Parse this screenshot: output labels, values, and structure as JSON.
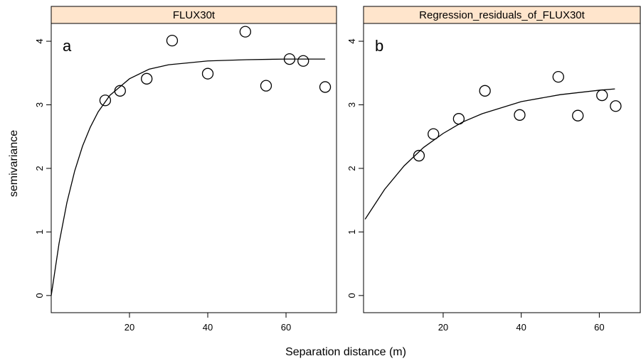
{
  "ylabel": "semivariance",
  "xlabel": "Separation distance (m)",
  "chart_data": [
    {
      "type": "scatter",
      "title": "FLUX30t",
      "annotation": "a",
      "x": [
        13.8,
        17.6,
        24.4,
        30.9,
        40.0,
        49.6,
        54.9,
        60.9,
        64.4,
        70.0
      ],
      "values": [
        3.07,
        3.22,
        3.41,
        4.01,
        3.49,
        4.15,
        3.3,
        3.72,
        3.69,
        3.28
      ],
      "fit": {
        "x": [
          0,
          2,
          4,
          6,
          8,
          10,
          12,
          15,
          20,
          25,
          30,
          40,
          50,
          60,
          70
        ],
        "values": [
          0,
          0.82,
          1.46,
          1.96,
          2.35,
          2.65,
          2.89,
          3.15,
          3.41,
          3.56,
          3.63,
          3.69,
          3.71,
          3.72,
          3.72
        ]
      },
      "xlim": [
        0,
        72.9
      ],
      "ylim": [
        -0.27,
        4.28
      ],
      "xticks": [
        20,
        40,
        60
      ],
      "yticks": [
        0,
        1,
        2,
        3,
        4
      ],
      "color": "#000000"
    },
    {
      "type": "scatter",
      "title": "Regression_residuals_of_FLUX30t",
      "annotation": "b",
      "x": [
        13.8,
        17.5,
        24.0,
        30.7,
        39.6,
        49.5,
        54.5,
        60.7,
        64.2
      ],
      "values": [
        2.2,
        2.54,
        2.78,
        3.22,
        2.84,
        3.44,
        2.83,
        3.15,
        2.98
      ],
      "fit": {
        "x": [
          0,
          5,
          10,
          15,
          20,
          25,
          30,
          40,
          50,
          60,
          64
        ],
        "values": [
          1.2,
          1.67,
          2.04,
          2.33,
          2.55,
          2.73,
          2.86,
          3.05,
          3.16,
          3.23,
          3.25
        ]
      },
      "xlim": [
        -0.4,
        70.5
      ],
      "ylim": [
        -0.27,
        4.28
      ],
      "xticks": [
        20,
        40,
        60
      ],
      "yticks": [
        0,
        1,
        2,
        3,
        4
      ],
      "color": "#000000"
    }
  ]
}
